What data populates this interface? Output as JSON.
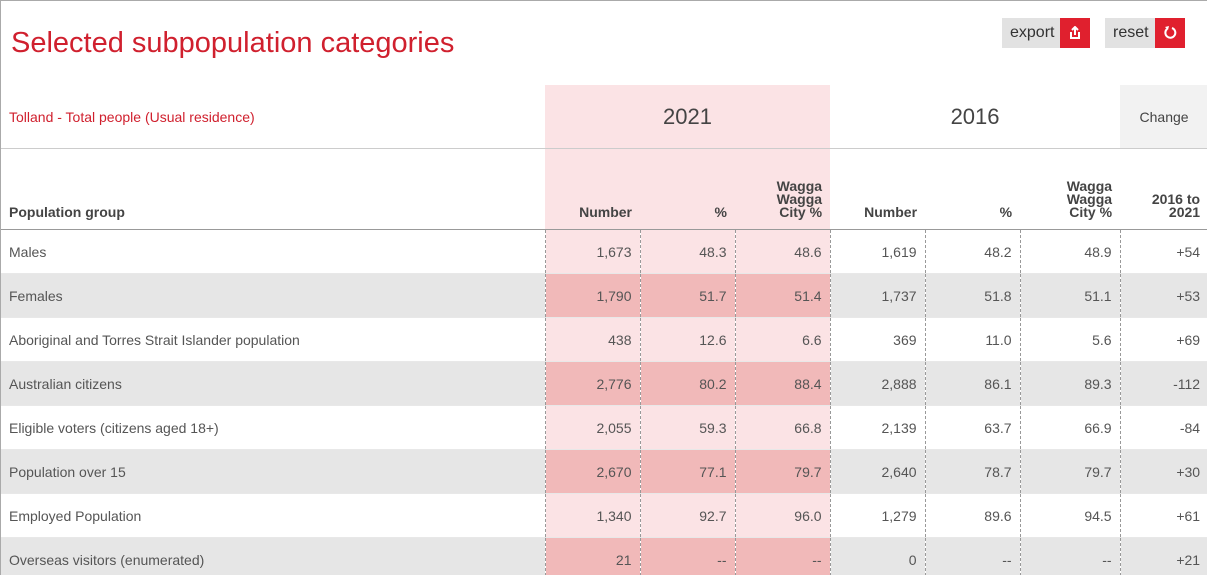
{
  "header": {
    "title": "Selected subpopulation categories",
    "buttons": [
      "export",
      "reset"
    ]
  },
  "table": {
    "caption": "Tolland - Total people (Usual residence)",
    "groups": [
      "2021",
      "2016",
      "Change"
    ],
    "columns": [
      "Population group",
      "Number",
      "%",
      "Wagga Wagga City %",
      "Number",
      "%",
      "Wagga Wagga City %",
      "2016 to 2021"
    ],
    "rows": [
      [
        "Males",
        "1,673",
        "48.3",
        "48.6",
        "1,619",
        "48.2",
        "48.9",
        "+54"
      ],
      [
        "Females",
        "1,790",
        "51.7",
        "51.4",
        "1,737",
        "51.8",
        "51.1",
        "+53"
      ],
      [
        "Aboriginal and Torres Strait Islander population",
        "438",
        "12.6",
        "6.6",
        "369",
        "11.0",
        "5.6",
        "+69"
      ],
      [
        "Australian citizens",
        "2,776",
        "80.2",
        "88.4",
        "2,888",
        "86.1",
        "89.3",
        "-112"
      ],
      [
        "Eligible voters (citizens aged 18+)",
        "2,055",
        "59.3",
        "66.8",
        "2,139",
        "63.7",
        "66.9",
        "-84"
      ],
      [
        "Population over 15",
        "2,670",
        "77.1",
        "79.7",
        "2,640",
        "78.7",
        "79.7",
        "+30"
      ],
      [
        "Employed Population",
        "1,340",
        "92.7",
        "96.0",
        "1,279",
        "89.6",
        "94.5",
        "+61"
      ],
      [
        "Overseas visitors (enumerated)",
        "21",
        "--",
        "--",
        "0",
        "--",
        "--",
        "+21"
      ]
    ]
  }
}
